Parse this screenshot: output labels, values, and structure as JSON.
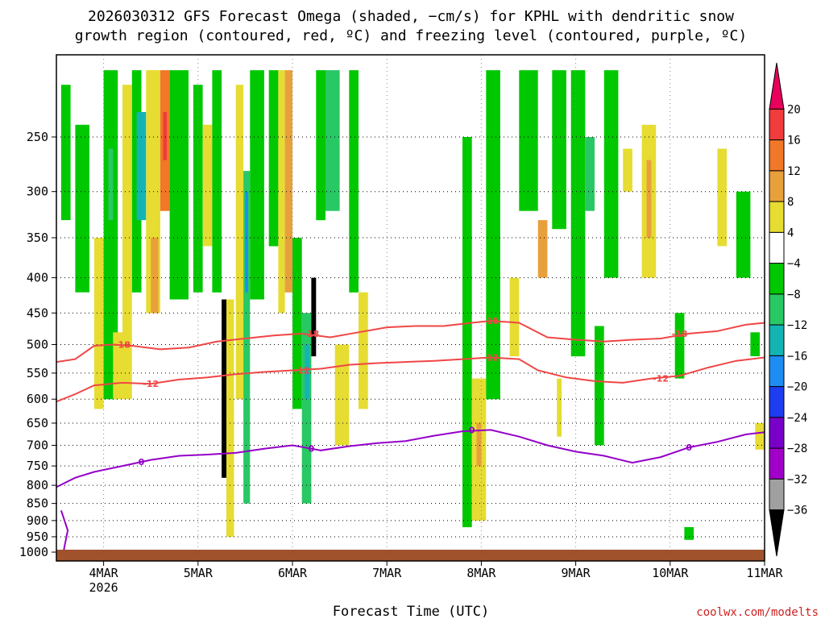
{
  "chart_data": {
    "type": "heatmap",
    "title_line1": "2026030312 GFS Forecast Omega (shaded, −cm/s) for KPHL with dendritic snow",
    "title_line2": "growth region (contoured, red, ºC) and freezing level (contoured, purple, ºC)",
    "xlabel": "Forecast Time (UTC)",
    "credit": "coolwx.com/modelts",
    "x_axis": {
      "range_days": [
        "2026-03-03T12",
        "2026-03-11T00"
      ],
      "ticks": [
        {
          "label": "4MAR",
          "sublabel": "2026",
          "day": 4
        },
        {
          "label": "5MAR",
          "sublabel": "",
          "day": 5
        },
        {
          "label": "6MAR",
          "sublabel": "",
          "day": 6
        },
        {
          "label": "7MAR",
          "sublabel": "",
          "day": 7
        },
        {
          "label": "8MAR",
          "sublabel": "",
          "day": 8
        },
        {
          "label": "9MAR",
          "sublabel": "",
          "day": 9
        },
        {
          "label": "10MAR",
          "sublabel": "",
          "day": 10
        },
        {
          "label": "11MAR",
          "sublabel": "",
          "day": 11
        }
      ]
    },
    "y_axis": {
      "scale": "pressure (log)",
      "range_hpa": [
        1030,
        190
      ],
      "ticks": [
        250,
        300,
        350,
        400,
        450,
        500,
        550,
        600,
        650,
        700,
        750,
        800,
        850,
        900,
        950,
        1000
      ]
    },
    "grid": true,
    "colorbar": {
      "labels": [
        "20",
        "16",
        "12",
        "8",
        "4",
        "−4",
        "−8",
        "−12",
        "−16",
        "−20",
        "−24",
        "−28",
        "−32",
        "−36"
      ],
      "colors": [
        "#e8005a",
        "#f03c3c",
        "#f07828",
        "#e8a03c",
        "#e6dc32",
        "#ffffff",
        "#00c800",
        "#28c864",
        "#14b4b4",
        "#1e8cf0",
        "#1e3cf0",
        "#7800c8",
        "#a000c8",
        "#a0a0a0",
        "#000000"
      ]
    },
    "contours": {
      "minus18": {
        "color": "#f04646",
        "label": "-18",
        "points": [
          [
            3.5,
            530
          ],
          [
            3.7,
            525
          ],
          [
            3.9,
            502
          ],
          [
            4.1,
            500
          ],
          [
            4.3,
            502
          ],
          [
            4.6,
            508
          ],
          [
            4.9,
            505
          ],
          [
            5.2,
            495
          ],
          [
            5.5,
            490
          ],
          [
            5.8,
            485
          ],
          [
            6.1,
            482
          ],
          [
            6.4,
            488
          ],
          [
            6.7,
            480
          ],
          [
            7.0,
            472
          ],
          [
            7.3,
            470
          ],
          [
            7.6,
            470
          ],
          [
            7.9,
            465
          ],
          [
            8.1,
            462
          ],
          [
            8.4,
            465
          ],
          [
            8.7,
            488
          ],
          [
            9.0,
            492
          ],
          [
            9.3,
            495
          ],
          [
            9.6,
            492
          ],
          [
            9.9,
            490
          ],
          [
            10.2,
            482
          ],
          [
            10.5,
            478
          ],
          [
            10.8,
            468
          ],
          [
            11.0,
            465
          ]
        ],
        "label_positions": [
          [
            4.2,
            500
          ],
          [
            6.2,
            482
          ],
          [
            8.1,
            462
          ],
          [
            10.1,
            482
          ]
        ]
      },
      "minus12": {
        "color": "#f04646",
        "label": "-12",
        "points": [
          [
            3.5,
            605
          ],
          [
            3.7,
            590
          ],
          [
            3.9,
            573
          ],
          [
            4.2,
            568
          ],
          [
            4.5,
            570
          ],
          [
            4.8,
            562
          ],
          [
            5.1,
            558
          ],
          [
            5.4,
            552
          ],
          [
            5.7,
            548
          ],
          [
            6.0,
            545
          ],
          [
            6.3,
            542
          ],
          [
            6.6,
            535
          ],
          [
            6.9,
            532
          ],
          [
            7.2,
            530
          ],
          [
            7.5,
            528
          ],
          [
            7.8,
            525
          ],
          [
            8.1,
            522
          ],
          [
            8.4,
            525
          ],
          [
            8.6,
            545
          ],
          [
            8.9,
            558
          ],
          [
            9.2,
            565
          ],
          [
            9.5,
            568
          ],
          [
            9.8,
            560
          ],
          [
            10.1,
            555
          ],
          [
            10.4,
            540
          ],
          [
            10.7,
            528
          ],
          [
            11.0,
            522
          ]
        ],
        "label_positions": [
          [
            4.5,
            570
          ],
          [
            6.1,
            545
          ],
          [
            8.1,
            522
          ],
          [
            9.9,
            560
          ]
        ]
      },
      "freezing": {
        "color": "#9400c8",
        "label": "0",
        "points": [
          [
            3.5,
            805
          ],
          [
            3.7,
            780
          ],
          [
            3.9,
            765
          ],
          [
            4.2,
            750
          ],
          [
            4.5,
            735
          ],
          [
            4.8,
            725
          ],
          [
            5.1,
            722
          ],
          [
            5.4,
            718
          ],
          [
            5.7,
            708
          ],
          [
            6.0,
            700
          ],
          [
            6.3,
            712
          ],
          [
            6.6,
            702
          ],
          [
            6.9,
            695
          ],
          [
            7.2,
            690
          ],
          [
            7.5,
            678
          ],
          [
            7.8,
            668
          ],
          [
            8.1,
            665
          ],
          [
            8.4,
            680
          ],
          [
            8.7,
            700
          ],
          [
            9.0,
            715
          ],
          [
            9.3,
            725
          ],
          [
            9.6,
            742
          ],
          [
            9.9,
            728
          ],
          [
            10.2,
            705
          ],
          [
            10.5,
            692
          ],
          [
            10.8,
            675
          ],
          [
            11.0,
            670
          ]
        ],
        "label_positions": [
          [
            4.4,
            740
          ],
          [
            6.2,
            708
          ],
          [
            7.9,
            665
          ],
          [
            10.2,
            705
          ]
        ]
      },
      "near_surface_zero": {
        "color": "#9400c8",
        "points": [
          [
            3.55,
            870
          ],
          [
            3.62,
            930
          ],
          [
            3.58,
            990
          ],
          [
            3.62,
            1015
          ]
        ]
      }
    },
    "omega_cells": [
      {
        "x0": 3.55,
        "x1": 3.65,
        "p0": 210,
        "p1": 330,
        "level": -8
      },
      {
        "x0": 3.7,
        "x1": 3.85,
        "p0": 240,
        "p1": 420,
        "level": -8
      },
      {
        "x0": 3.9,
        "x1": 4.0,
        "p0": 350,
        "p1": 620,
        "level": 4
      },
      {
        "x0": 4.0,
        "x1": 4.15,
        "p0": 200,
        "p1": 600,
        "level": -8
      },
      {
        "x0": 4.05,
        "x1": 4.1,
        "p0": 260,
        "p1": 330,
        "level": -12
      },
      {
        "x0": 4.1,
        "x1": 4.2,
        "p0": 480,
        "p1": 600,
        "level": 4
      },
      {
        "x0": 4.2,
        "x1": 4.3,
        "p0": 210,
        "p1": 600,
        "level": 4
      },
      {
        "x0": 4.3,
        "x1": 4.4,
        "p0": 200,
        "p1": 420,
        "level": -8
      },
      {
        "x0": 4.35,
        "x1": 4.45,
        "p0": 230,
        "p1": 330,
        "level": -16
      },
      {
        "x0": 4.45,
        "x1": 4.6,
        "p0": 200,
        "p1": 450,
        "level": 4
      },
      {
        "x0": 4.5,
        "x1": 4.58,
        "p0": 350,
        "p1": 450,
        "level": 8
      },
      {
        "x0": 4.6,
        "x1": 4.7,
        "p0": 200,
        "p1": 320,
        "level": 12
      },
      {
        "x0": 4.63,
        "x1": 4.67,
        "p0": 230,
        "p1": 270,
        "level": 16
      },
      {
        "x0": 4.7,
        "x1": 4.9,
        "p0": 200,
        "p1": 430,
        "level": -8
      },
      {
        "x0": 4.95,
        "x1": 5.05,
        "p0": 210,
        "p1": 420,
        "level": -8
      },
      {
        "x0": 5.05,
        "x1": 5.15,
        "p0": 240,
        "p1": 360,
        "level": 4
      },
      {
        "x0": 5.15,
        "x1": 5.25,
        "p0": 200,
        "p1": 420,
        "level": -8
      },
      {
        "x0": 5.25,
        "x1": 5.3,
        "p0": 430,
        "p1": 780,
        "level": -36
      },
      {
        "x0": 5.3,
        "x1": 5.38,
        "p0": 430,
        "p1": 950,
        "level": 4
      },
      {
        "x0": 5.4,
        "x1": 5.48,
        "p0": 210,
        "p1": 600,
        "level": 4
      },
      {
        "x0": 5.48,
        "x1": 5.55,
        "p0": 280,
        "p1": 850,
        "level": -12
      },
      {
        "x0": 5.5,
        "x1": 5.53,
        "p0": 300,
        "p1": 420,
        "level": -20
      },
      {
        "x0": 5.55,
        "x1": 5.7,
        "p0": 200,
        "p1": 430,
        "level": -8
      },
      {
        "x0": 5.75,
        "x1": 5.85,
        "p0": 200,
        "p1": 360,
        "level": -8
      },
      {
        "x0": 5.85,
        "x1": 5.92,
        "p0": 200,
        "p1": 450,
        "level": 4
      },
      {
        "x0": 5.92,
        "x1": 6.0,
        "p0": 200,
        "p1": 420,
        "level": 8
      },
      {
        "x0": 6.0,
        "x1": 6.1,
        "p0": 350,
        "p1": 620,
        "level": -8
      },
      {
        "x0": 6.1,
        "x1": 6.2,
        "p0": 450,
        "p1": 850,
        "level": -12
      },
      {
        "x0": 6.13,
        "x1": 6.18,
        "p0": 500,
        "p1": 600,
        "level": -16
      },
      {
        "x0": 6.2,
        "x1": 6.25,
        "p0": 400,
        "p1": 520,
        "level": -36
      },
      {
        "x0": 6.25,
        "x1": 6.35,
        "p0": 200,
        "p1": 330,
        "level": -8
      },
      {
        "x0": 6.35,
        "x1": 6.5,
        "p0": 200,
        "p1": 320,
        "level": -12
      },
      {
        "x0": 6.45,
        "x1": 6.6,
        "p0": 500,
        "p1": 700,
        "level": 4
      },
      {
        "x0": 6.6,
        "x1": 6.7,
        "p0": 200,
        "p1": 420,
        "level": -8
      },
      {
        "x0": 6.7,
        "x1": 6.8,
        "p0": 420,
        "p1": 620,
        "level": 4
      },
      {
        "x0": 7.8,
        "x1": 7.9,
        "p0": 250,
        "p1": 920,
        "level": -8
      },
      {
        "x0": 7.9,
        "x1": 8.05,
        "p0": 560,
        "p1": 900,
        "level": 4
      },
      {
        "x0": 7.95,
        "x1": 8.0,
        "p0": 650,
        "p1": 750,
        "level": 8
      },
      {
        "x0": 8.05,
        "x1": 8.2,
        "p0": 200,
        "p1": 600,
        "level": -8
      },
      {
        "x0": 8.3,
        "x1": 8.4,
        "p0": 400,
        "p1": 520,
        "level": 4
      },
      {
        "x0": 8.4,
        "x1": 8.6,
        "p0": 200,
        "p1": 320,
        "level": -8
      },
      {
        "x0": 8.6,
        "x1": 8.7,
        "p0": 330,
        "p1": 400,
        "level": 8
      },
      {
        "x0": 8.75,
        "x1": 8.9,
        "p0": 200,
        "p1": 340,
        "level": -8
      },
      {
        "x0": 8.8,
        "x1": 8.85,
        "p0": 560,
        "p1": 680,
        "level": 4
      },
      {
        "x0": 8.95,
        "x1": 9.1,
        "p0": 200,
        "p1": 520,
        "level": -8
      },
      {
        "x0": 9.1,
        "x1": 9.2,
        "p0": 250,
        "p1": 320,
        "level": -12
      },
      {
        "x0": 9.2,
        "x1": 9.3,
        "p0": 470,
        "p1": 700,
        "level": -8
      },
      {
        "x0": 9.3,
        "x1": 9.45,
        "p0": 200,
        "p1": 400,
        "level": -8
      },
      {
        "x0": 9.5,
        "x1": 9.6,
        "p0": 260,
        "p1": 300,
        "level": 4
      },
      {
        "x0": 9.7,
        "x1": 9.85,
        "p0": 240,
        "p1": 400,
        "level": 4
      },
      {
        "x0": 9.75,
        "x1": 9.8,
        "p0": 270,
        "p1": 350,
        "level": 8
      },
      {
        "x0": 10.05,
        "x1": 10.15,
        "p0": 450,
        "p1": 560,
        "level": -8
      },
      {
        "x0": 10.15,
        "x1": 10.25,
        "p0": 920,
        "p1": 960,
        "level": -8
      },
      {
        "x0": 10.5,
        "x1": 10.6,
        "p0": 260,
        "p1": 360,
        "level": 4
      },
      {
        "x0": 10.7,
        "x1": 10.85,
        "p0": 300,
        "p1": 400,
        "level": -8
      },
      {
        "x0": 10.85,
        "x1": 10.95,
        "p0": 480,
        "p1": 520,
        "level": -8
      },
      {
        "x0": 10.9,
        "x1": 11.0,
        "p0": 650,
        "p1": 710,
        "level": 4
      }
    ],
    "surface_fill_color": "#a0522d"
  }
}
